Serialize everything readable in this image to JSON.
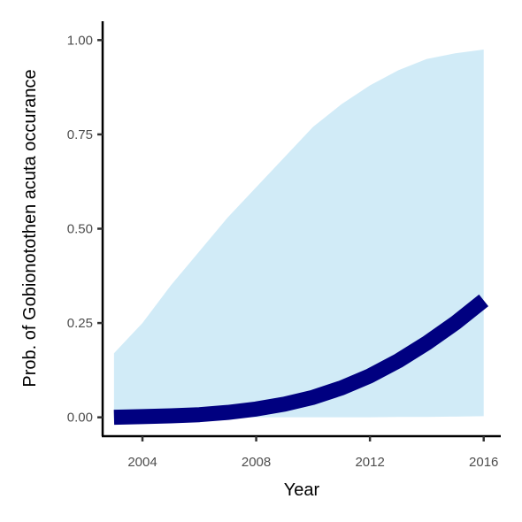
{
  "chart_data": {
    "type": "line",
    "xlabel": "Year",
    "ylabel": "Prob. of  Gobionotothen acuta  occurance",
    "xlim": [
      2002.6,
      2016.6
    ],
    "ylim": [
      -0.05,
      1.05
    ],
    "x_ticks": [
      {
        "value": 2004,
        "label": "2004"
      },
      {
        "value": 2008,
        "label": "2008"
      },
      {
        "value": 2012,
        "label": "2012"
      },
      {
        "value": 2016,
        "label": "2016"
      }
    ],
    "y_ticks": [
      {
        "value": 0.0,
        "label": "0.00"
      },
      {
        "value": 0.25,
        "label": "0.25"
      },
      {
        "value": 0.5,
        "label": "0.50"
      },
      {
        "value": 0.75,
        "label": "0.75"
      },
      {
        "value": 1.0,
        "label": "1.00"
      }
    ],
    "grid": false,
    "series": [
      {
        "style": "line",
        "color": "#000080",
        "ribbon_color": "#d1ebf7",
        "x": [
          2003,
          2004,
          2005,
          2006,
          2007,
          2008,
          2009,
          2010,
          2011,
          2012,
          2013,
          2014,
          2015,
          2016
        ],
        "y": [
          0.0,
          0.002,
          0.004,
          0.007,
          0.013,
          0.022,
          0.035,
          0.053,
          0.078,
          0.11,
          0.15,
          0.197,
          0.25,
          0.31
        ],
        "lower": [
          0.0,
          0.0,
          0.0,
          0.0,
          0.0,
          0.0,
          0.0,
          0.0,
          0.0,
          0.0,
          0.001,
          0.001,
          0.002,
          0.003
        ],
        "upper": [
          0.17,
          0.25,
          0.35,
          0.44,
          0.53,
          0.61,
          0.69,
          0.77,
          0.83,
          0.88,
          0.92,
          0.95,
          0.965,
          0.975
        ]
      }
    ]
  }
}
